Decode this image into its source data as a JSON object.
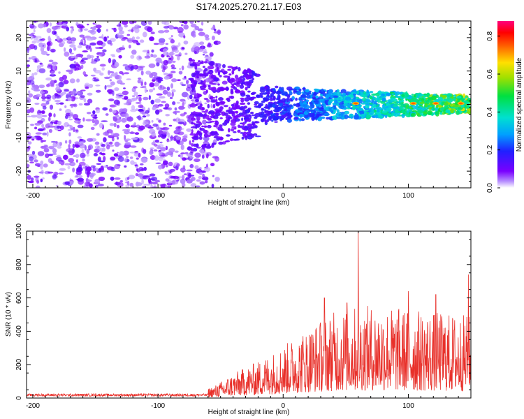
{
  "title": "S174.2025.270.21.17.E03",
  "colors": {
    "line": "#e8302a",
    "spectrogram_base": "#7f00ff",
    "spectrogram_hot": "#ff0000"
  },
  "colorbar": {
    "label": "Normalized spectral amplitude",
    "ticks": [
      "0.0",
      "0.2",
      "0.4",
      "0.6",
      "0.8"
    ],
    "range": [
      0,
      0.88
    ]
  },
  "chart_data": [
    {
      "type": "heatmap",
      "title": "S174.2025.270.21.17.E03",
      "xlabel": "Height of straight line (km)",
      "ylabel": "Frequency (Hz)",
      "xlim": [
        -205,
        150
      ],
      "ylim": [
        -25,
        25
      ],
      "xticks": [
        "-200",
        "-100",
        "0",
        "100"
      ],
      "yticks": [
        "20",
        "10",
        "0",
        "-10",
        "-20"
      ],
      "noise_region_x": [
        -205,
        -55
      ],
      "signal_region_x": [
        -75,
        150
      ],
      "signal_center_frequency_hz": 0,
      "signal_bandwidth_hz": {
        "at_-60km": 8,
        "at_0km": 5,
        "at_150km": 2.5
      },
      "peak_amplitude": 0.85,
      "peak_locations_km": [
        58,
        104,
        122,
        142
      ]
    },
    {
      "type": "line",
      "xlabel": "Height of straight line (km)",
      "ylabel": "SNR (10 * v/v)",
      "xlim": [
        -205,
        150
      ],
      "ylim": [
        0,
        1000
      ],
      "xticks": [
        "-200",
        "-100",
        "0",
        "100"
      ],
      "yticks": [
        "0",
        "200",
        "400",
        "600",
        "800",
        "1000"
      ],
      "series": [
        {
          "name": "SNR",
          "envelope_x": [
            -205,
            -150,
            -100,
            -70,
            -55,
            -40,
            -20,
            0,
            20,
            40,
            60,
            80,
            100,
            120,
            150
          ],
          "envelope_mean": [
            18,
            18,
            18,
            18,
            40,
            80,
            120,
            170,
            230,
            280,
            300,
            300,
            290,
            280,
            270
          ],
          "peaks": [
            {
              "x": 33,
              "y": 600
            },
            {
              "x": 51,
              "y": 570
            },
            {
              "x": 60,
              "y": 1000
            },
            {
              "x": 100,
              "y": 640
            },
            {
              "x": 122,
              "y": 620
            },
            {
              "x": 148,
              "y": 740
            }
          ]
        }
      ]
    }
  ]
}
